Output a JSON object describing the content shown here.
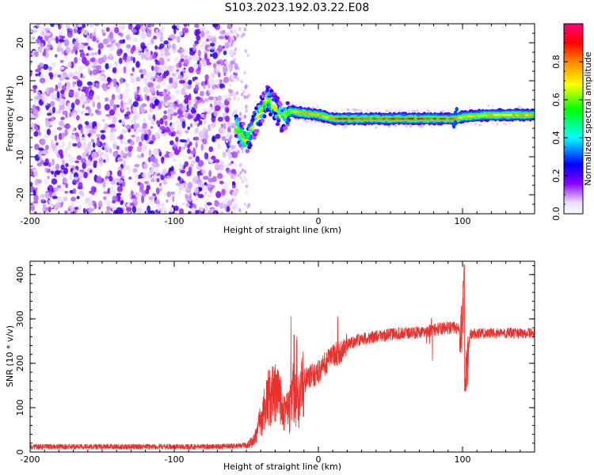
{
  "figure_title": "S103.2023.192.03.22.E08",
  "chart_data": [
    {
      "type": "heatmap",
      "xlabel": "Height of straight line (km)",
      "ylabel": "Frequency (Hz)",
      "xlim": [
        -200,
        150
      ],
      "ylim": [
        -25,
        25
      ],
      "x_ticks": [
        -200,
        -100,
        0,
        100
      ],
      "y_ticks": [
        -20,
        -10,
        0,
        10,
        20
      ],
      "colorbar": {
        "label": "Normalized spectral amplitude",
        "range": [
          0,
          1
        ],
        "ticks": [
          0.0,
          0.2,
          0.4,
          0.6,
          0.8
        ],
        "tick_labels": [
          "0.0",
          "0.2",
          "0.4",
          "0.6",
          "0.8"
        ],
        "colormap": [
          "#ffffff",
          "#8800ff",
          "#0000ff",
          "#00ffff",
          "#00ff00",
          "#ffff00",
          "#ff8800",
          "#ff0000",
          "#ff0088"
        ]
      },
      "regions": [
        {
          "x_range": [
            -200,
            -57
          ],
          "freq_range": [
            -25,
            25
          ],
          "description": "broadband noise, amplitude 0.1-0.4"
        },
        {
          "x_range": [
            -57,
            -20
          ],
          "freq_range": [
            -8,
            8
          ],
          "description": "transition, amplitude up to 0.7"
        },
        {
          "x_range": [
            -20,
            150
          ],
          "freq_range": [
            -1.5,
            1.5
          ],
          "description": "carrier line near 0 Hz, amplitude up to 0.9"
        }
      ],
      "carrier_center_hz": [
        {
          "x": -55,
          "y": -3
        },
        {
          "x": -50,
          "y": -6
        },
        {
          "x": -45,
          "y": -2
        },
        {
          "x": -40,
          "y": 2
        },
        {
          "x": -35,
          "y": 5
        },
        {
          "x": -30,
          "y": 3
        },
        {
          "x": -25,
          "y": 0
        },
        {
          "x": -20,
          "y": 2
        },
        {
          "x": -10,
          "y": 1.5
        },
        {
          "x": 0,
          "y": 1
        },
        {
          "x": 10,
          "y": 0
        },
        {
          "x": 90,
          "y": 0
        },
        {
          "x": 95,
          "y": 0
        },
        {
          "x": 100,
          "y": 0.5
        },
        {
          "x": 120,
          "y": 1
        },
        {
          "x": 150,
          "y": 1
        }
      ]
    },
    {
      "type": "line",
      "xlabel": "Height of straight line (km)",
      "ylabel": "SNR (10 * v/v)",
      "xlim": [
        -200,
        150
      ],
      "ylim": [
        0,
        430
      ],
      "x_ticks": [
        -200,
        -100,
        0,
        100
      ],
      "y_ticks": [
        0,
        100,
        200,
        300,
        400
      ],
      "series": [
        {
          "color": "#e8322e",
          "x": [
            -200,
            -180,
            -160,
            -140,
            -120,
            -100,
            -80,
            -60,
            -50,
            -45,
            -40,
            -35,
            -30,
            -25,
            -20,
            -18,
            -15,
            -10,
            -5,
            0,
            5,
            10,
            15,
            20,
            25,
            30,
            40,
            50,
            60,
            70,
            75,
            80,
            85,
            90,
            95,
            100,
            101,
            102,
            105,
            110,
            120,
            130,
            140,
            150
          ],
          "y": [
            12,
            12,
            12,
            12,
            12,
            12,
            12,
            13,
            15,
            25,
            70,
            120,
            130,
            110,
            90,
            150,
            100,
            160,
            170,
            180,
            200,
            220,
            225,
            240,
            250,
            255,
            260,
            265,
            268,
            270,
            272,
            275,
            278,
            280,
            280,
            275,
            420,
            150,
            265,
            268,
            268,
            268,
            268,
            268
          ]
        }
      ]
    }
  ]
}
